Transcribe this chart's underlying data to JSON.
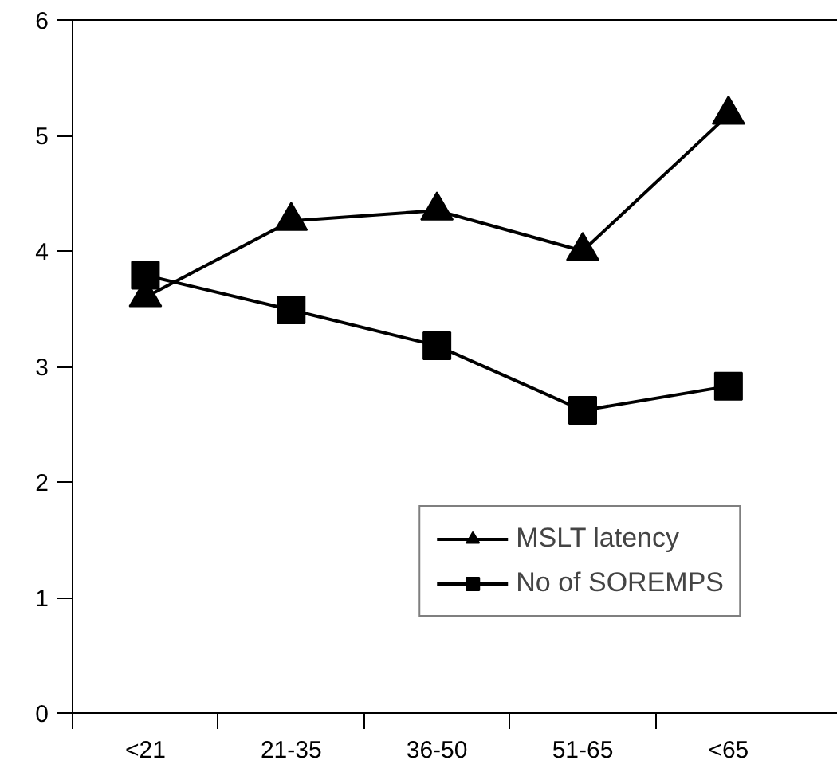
{
  "chart_data": {
    "type": "line",
    "categories": [
      "<21",
      "21-35",
      "36-50",
      "51-65",
      "<65"
    ],
    "series": [
      {
        "name": "MSLT latency",
        "color": "#000000",
        "marker": "triangle",
        "values": [
          3.6,
          4.26,
          4.35,
          4.0,
          5.18
        ]
      },
      {
        "name": "No of SOREMPS",
        "color": "#000000",
        "marker": "square",
        "values": [
          3.79,
          3.49,
          3.18,
          2.62,
          2.83
        ]
      }
    ],
    "ylim": [
      0,
      6
    ],
    "yticks": [
      0,
      1,
      2,
      3,
      4,
      5,
      6
    ],
    "grid": false,
    "legend": "bottom right",
    "line_style": "solid"
  }
}
